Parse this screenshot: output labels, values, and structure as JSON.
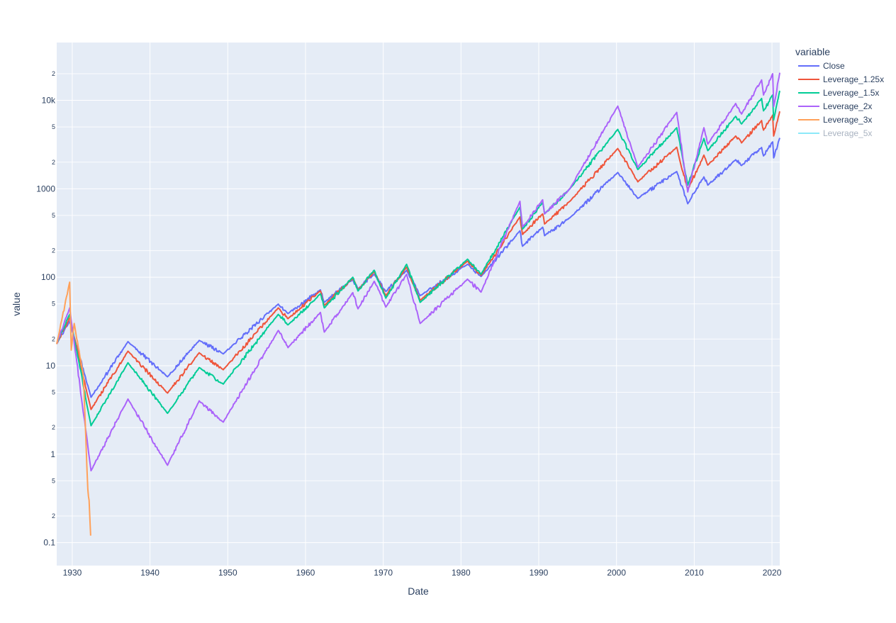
{
  "chart_data": {
    "type": "line",
    "title": "",
    "xlabel": "Date",
    "ylabel": "value",
    "y_scale": "log",
    "xlim": [
      "1928-01-01",
      "2020-12-31"
    ],
    "ylim": [
      0.055,
      45000
    ],
    "x_ticks": [
      "1930",
      "1940",
      "1950",
      "1960",
      "1970",
      "1980",
      "1990",
      "2000",
      "2010",
      "2020"
    ],
    "y_ticks": [
      {
        "value": 0.1,
        "label": "0.1"
      },
      {
        "value": 1,
        "label": "1"
      },
      {
        "value": 10,
        "label": "10"
      },
      {
        "value": 100,
        "label": "100"
      },
      {
        "value": 1000,
        "label": "1000"
      },
      {
        "value": 10000,
        "label": "10k"
      }
    ],
    "y_minor_ticks": [
      {
        "value": 0.2,
        "label": "2"
      },
      {
        "value": 0.5,
        "label": "5"
      },
      {
        "value": 2,
        "label": "2"
      },
      {
        "value": 5,
        "label": "5"
      },
      {
        "value": 20,
        "label": "2"
      },
      {
        "value": 50,
        "label": "5"
      },
      {
        "value": 200,
        "label": "2"
      },
      {
        "value": 500,
        "label": "5"
      },
      {
        "value": 2000,
        "label": "2"
      },
      {
        "value": 5000,
        "label": "5"
      },
      {
        "value": 20000,
        "label": "2"
      }
    ],
    "grid": true,
    "legend": {
      "title": "variable",
      "placement": "right"
    },
    "series": [
      {
        "name": "Close",
        "color": "#636efa",
        "visible": true,
        "x": [
          "1928-01-01",
          "1929-09-01",
          "1932-06-01",
          "1937-03-01",
          "1942-04-01",
          "1946-05-01",
          "1949-06-01",
          "1956-07-01",
          "1957-10-01",
          "1961-12-01",
          "1962-06-01",
          "1966-02-01",
          "1966-10-01",
          "1968-11-01",
          "1970-05-01",
          "1973-01-01",
          "1974-10-01",
          "1980-11-01",
          "1982-08-01",
          "1987-08-01",
          "1987-12-01",
          "1990-07-01",
          "1990-10-01",
          "1994-01-01",
          "2000-03-01",
          "2002-10-01",
          "2007-10-01",
          "2009-03-01",
          "2011-04-01",
          "2011-10-01",
          "2015-05-01",
          "2016-02-01",
          "2018-09-01",
          "2018-12-01",
          "2020-02-01",
          "2020-03-20",
          "2020-12-31"
        ],
        "y": [
          17.6,
          31.9,
          4.4,
          18.7,
          7.5,
          19.3,
          13.6,
          49.7,
          38.9,
          72,
          52,
          94,
          74,
          108,
          69,
          120,
          62,
          140,
          102,
          335,
          224,
          368,
          295,
          470,
          1527,
          777,
          1565,
          677,
          1363,
          1099,
          2130,
          1829,
          2930,
          2351,
          3386,
          2237,
          3756
        ]
      },
      {
        "name": "Leverage_1.25x",
        "color": "#ef553b",
        "visible": true,
        "x": [
          "1928-01-01",
          "1929-09-01",
          "1932-06-01",
          "1937-03-01",
          "1942-04-01",
          "1946-05-01",
          "1949-06-01",
          "1956-07-01",
          "1957-10-01",
          "1961-12-01",
          "1962-06-01",
          "1966-02-01",
          "1966-10-01",
          "1968-11-01",
          "1970-05-01",
          "1973-01-01",
          "1974-10-01",
          "1980-11-01",
          "1982-08-01",
          "1987-08-01",
          "1987-12-01",
          "1990-07-01",
          "1990-10-01",
          "1994-01-01",
          "2000-03-01",
          "2002-10-01",
          "2007-10-01",
          "2009-03-01",
          "2011-04-01",
          "2011-10-01",
          "2015-05-01",
          "2016-02-01",
          "2018-09-01",
          "2018-12-01",
          "2020-02-01",
          "2020-03-20",
          "2020-12-31"
        ],
        "y": [
          17.6,
          35,
          3.2,
          14.6,
          4.9,
          14,
          9,
          45,
          34,
          70,
          48,
          98,
          72,
          115,
          62,
          130,
          55,
          152,
          105,
          480,
          305,
          520,
          400,
          720,
          2850,
          1200,
          2950,
          980,
          2400,
          1850,
          3950,
          3300,
          5900,
          4600,
          6800,
          3950,
          7500
        ]
      },
      {
        "name": "Leverage_1.5x",
        "color": "#00cc96",
        "visible": true,
        "x": [
          "1928-01-01",
          "1929-09-01",
          "1932-06-01",
          "1937-03-01",
          "1942-04-01",
          "1946-05-01",
          "1949-06-01",
          "1956-07-01",
          "1957-10-01",
          "1961-12-01",
          "1962-06-01",
          "1966-02-01",
          "1966-10-01",
          "1968-11-01",
          "1970-05-01",
          "1973-01-01",
          "1974-10-01",
          "1980-11-01",
          "1982-08-01",
          "1987-08-01",
          "1987-12-01",
          "1990-07-01",
          "1990-10-01",
          "1994-01-01",
          "2000-03-01",
          "2002-10-01",
          "2007-10-01",
          "2009-03-01",
          "2011-04-01",
          "2011-10-01",
          "2015-05-01",
          "2016-02-01",
          "2018-09-01",
          "2018-12-01",
          "2020-02-01",
          "2020-03-20",
          "2020-12-31"
        ],
        "y": [
          17.6,
          38,
          2.1,
          10.8,
          2.9,
          9.5,
          6.2,
          38,
          29,
          65,
          45,
          100,
          70,
          120,
          58,
          140,
          52,
          160,
          108,
          620,
          350,
          700,
          520,
          1000,
          4700,
          1650,
          4900,
          1100,
          3700,
          2700,
          6600,
          5400,
          10500,
          7600,
          11500,
          6000,
          12800
        ]
      },
      {
        "name": "Leverage_2x",
        "color": "#ab63fa",
        "visible": true,
        "x": [
          "1928-01-01",
          "1929-09-01",
          "1932-06-01",
          "1937-03-01",
          "1942-04-01",
          "1946-05-01",
          "1949-06-01",
          "1956-07-01",
          "1957-10-01",
          "1961-12-01",
          "1962-06-01",
          "1966-02-01",
          "1966-10-01",
          "1968-11-01",
          "1970-05-01",
          "1973-01-01",
          "1974-10-01",
          "1980-11-01",
          "1982-08-01",
          "1987-08-01",
          "1987-12-01",
          "1990-07-01",
          "1990-10-01",
          "1994-01-01",
          "2000-03-01",
          "2002-10-01",
          "2007-10-01",
          "2009-03-01",
          "2011-04-01",
          "2011-10-01",
          "2015-05-01",
          "2016-02-01",
          "2018-09-01",
          "2018-12-01",
          "2020-02-01",
          "2020-03-20",
          "2020-12-31"
        ],
        "y": [
          17.6,
          45,
          0.65,
          4.2,
          0.75,
          4,
          2.3,
          25,
          16,
          40,
          24,
          67,
          44,
          90,
          46,
          108,
          30,
          95,
          68,
          720,
          370,
          750,
          520,
          1000,
          8600,
          1750,
          7300,
          920,
          4900,
          3200,
          9200,
          7000,
          17000,
          11500,
          20000,
          8500,
          20500
        ]
      },
      {
        "name": "Leverage_3x",
        "color": "#ffa15a",
        "visible": true,
        "x": [
          "1928-01-01",
          "1929-09-01",
          "1929-11-15",
          "1930-04-01",
          "1931-06-01",
          "1931-10-01",
          "1932-01-01",
          "1932-03-01",
          "1932-05-15"
        ],
        "y": [
          17.6,
          88,
          15,
          30,
          8,
          1.5,
          0.4,
          0.3,
          0.12
        ]
      },
      {
        "name": "Leverage_5x",
        "color": "#19d3f3",
        "visible": false,
        "x": [],
        "y": []
      }
    ]
  }
}
